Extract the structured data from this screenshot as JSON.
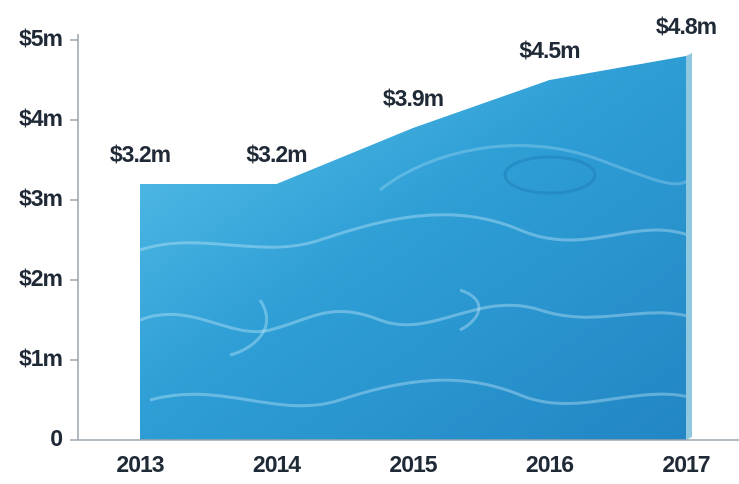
{
  "chart_data": {
    "type": "area",
    "categories": [
      "2013",
      "2014",
      "2015",
      "2016",
      "2017"
    ],
    "values": [
      3.2,
      3.2,
      3.9,
      4.5,
      4.8
    ],
    "value_labels": [
      "$3.2m",
      "$3.2m",
      "$3.9m",
      "$4.5m",
      "$4.8m"
    ],
    "color": "#2a8fc9",
    "ylim": [
      0,
      5
    ],
    "yticks": [
      0,
      {
        "value": 1,
        "label": "$1m"
      },
      {
        "value": 2,
        "label": "$2m"
      },
      {
        "value": 3,
        "label": "$3m"
      },
      {
        "value": 4,
        "label": "$4m"
      },
      {
        "value": 5,
        "label": "$5m"
      }
    ]
  }
}
